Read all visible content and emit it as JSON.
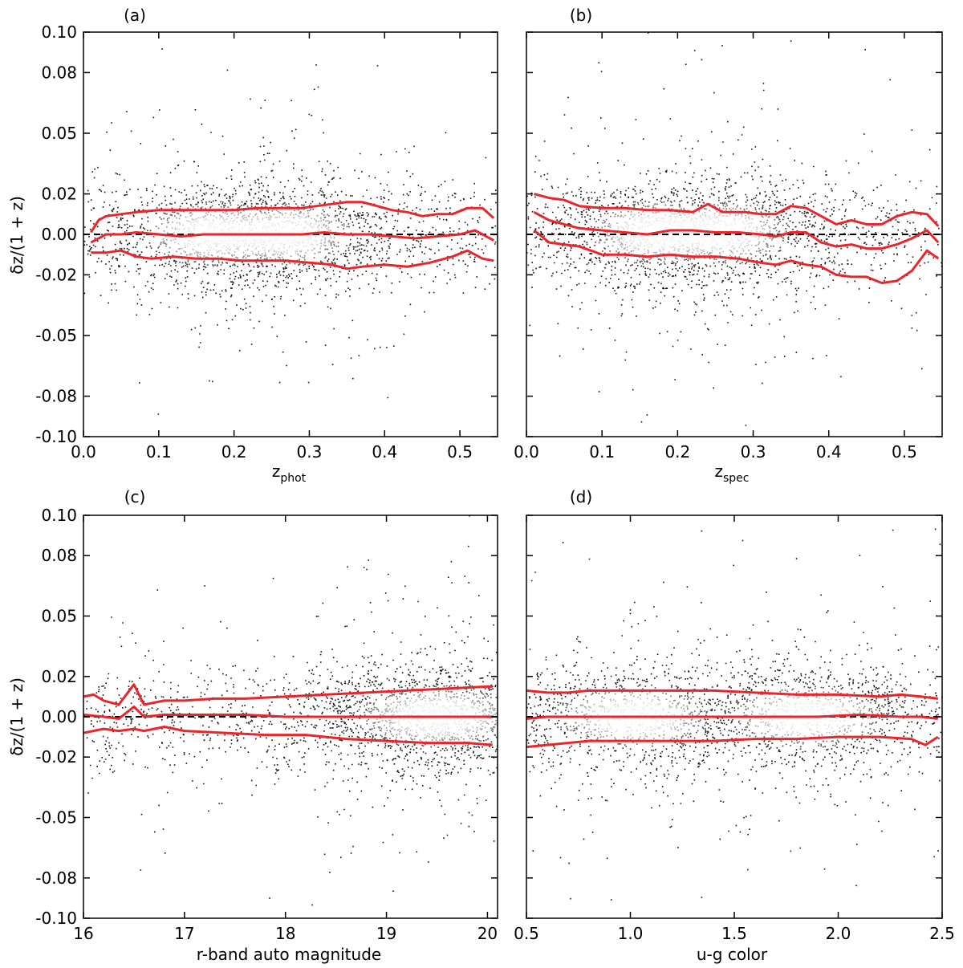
{
  "figure": {
    "y_label": "δz/(1 + z)",
    "dashed_line_color": "#000000",
    "median_line_color": "#e8262b",
    "point_color": "#111111",
    "density_core_color": "#ffffff"
  },
  "chart_data": [
    {
      "type": "scatter",
      "panel_label": "(a)",
      "xlabel_main": "z",
      "xlabel_sub": "phot",
      "ylabel": "δz/(1 + z)",
      "xlim": [
        0.0,
        0.55
      ],
      "ylim": [
        -0.1,
        0.1
      ],
      "x_ticks": [
        0.0,
        0.1,
        0.2,
        0.3,
        0.4,
        0.5
      ],
      "x_tick_labels": [
        "0.0",
        "0.1",
        "0.2",
        "0.3",
        "0.4",
        "0.5"
      ],
      "y_tick_labels": [
        "-0.10",
        "-0.08",
        "-0.05",
        "-0.02",
        "0.00",
        "0.02",
        "0.05",
        "0.08",
        "0.10"
      ],
      "reference_line": 0.0,
      "density": {
        "centers": [
          [
            0.17,
            0.0
          ],
          [
            0.27,
            0.0
          ]
        ],
        "x_sigma": 0.06,
        "y_sigma": 0.011
      },
      "series": [
        {
          "x": [
            0.01,
            0.02,
            0.03,
            0.05,
            0.07,
            0.1,
            0.13,
            0.16,
            0.2,
            0.23,
            0.26,
            0.29,
            0.31,
            0.33,
            0.35,
            0.37,
            0.39,
            0.41,
            0.43,
            0.45,
            0.47,
            0.49,
            0.51,
            0.53,
            0.545
          ],
          "y": [
            0.001,
            0.007,
            0.009,
            0.01,
            0.011,
            0.012,
            0.012,
            0.012,
            0.012,
            0.013,
            0.013,
            0.013,
            0.014,
            0.015,
            0.016,
            0.016,
            0.014,
            0.012,
            0.011,
            0.009,
            0.01,
            0.01,
            0.013,
            0.013,
            0.008
          ]
        },
        {
          "x": [
            0.01,
            0.03,
            0.05,
            0.07,
            0.1,
            0.13,
            0.16,
            0.2,
            0.23,
            0.26,
            0.29,
            0.32,
            0.35,
            0.38,
            0.41,
            0.44,
            0.47,
            0.5,
            0.52,
            0.545
          ],
          "y": [
            -0.004,
            0.0,
            0.0,
            0.001,
            0.0,
            -0.001,
            0.0,
            0.0,
            0.0,
            0.0,
            0.0,
            0.001,
            0.0,
            0.0,
            -0.001,
            -0.002,
            -0.001,
            0.0,
            0.002,
            -0.003
          ]
        },
        {
          "x": [
            0.01,
            0.03,
            0.05,
            0.07,
            0.09,
            0.12,
            0.15,
            0.18,
            0.21,
            0.24,
            0.27,
            0.3,
            0.33,
            0.35,
            0.37,
            0.4,
            0.43,
            0.46,
            0.49,
            0.51,
            0.53,
            0.545
          ],
          "y": [
            -0.009,
            -0.009,
            -0.008,
            -0.011,
            -0.012,
            -0.011,
            -0.012,
            -0.012,
            -0.013,
            -0.013,
            -0.013,
            -0.014,
            -0.015,
            -0.017,
            -0.016,
            -0.015,
            -0.016,
            -0.014,
            -0.011,
            -0.008,
            -0.012,
            -0.013
          ]
        }
      ]
    },
    {
      "type": "scatter",
      "panel_label": "(b)",
      "xlabel_main": "z",
      "xlabel_sub": "spec",
      "ylabel": "",
      "xlim": [
        0.0,
        0.55
      ],
      "ylim": [
        -0.1,
        0.1
      ],
      "x_ticks": [
        0.0,
        0.1,
        0.2,
        0.3,
        0.4,
        0.5
      ],
      "x_tick_labels": [
        "0.0",
        "0.1",
        "0.2",
        "0.3",
        "0.4",
        "0.5"
      ],
      "y_tick_labels": [],
      "reference_line": 0.0,
      "density": {
        "centers": [
          [
            0.17,
            0.001
          ],
          [
            0.26,
            0.001
          ]
        ],
        "x_sigma": 0.06,
        "y_sigma": 0.011
      },
      "series": [
        {
          "x": [
            0.01,
            0.03,
            0.05,
            0.07,
            0.1,
            0.13,
            0.16,
            0.19,
            0.22,
            0.24,
            0.26,
            0.29,
            0.31,
            0.33,
            0.35,
            0.37,
            0.39,
            0.41,
            0.43,
            0.45,
            0.47,
            0.49,
            0.51,
            0.53,
            0.545
          ],
          "y": [
            0.02,
            0.018,
            0.017,
            0.014,
            0.013,
            0.013,
            0.012,
            0.012,
            0.011,
            0.015,
            0.011,
            0.011,
            0.01,
            0.01,
            0.014,
            0.013,
            0.009,
            0.005,
            0.007,
            0.005,
            0.005,
            0.009,
            0.011,
            0.01,
            0.004
          ]
        },
        {
          "x": [
            0.01,
            0.03,
            0.05,
            0.07,
            0.1,
            0.13,
            0.16,
            0.19,
            0.22,
            0.25,
            0.28,
            0.31,
            0.33,
            0.35,
            0.37,
            0.39,
            0.41,
            0.43,
            0.45,
            0.47,
            0.49,
            0.51,
            0.53,
            0.545
          ],
          "y": [
            0.011,
            0.007,
            0.005,
            0.003,
            0.002,
            0.001,
            0.0,
            0.002,
            0.002,
            0.001,
            0.001,
            0.0,
            -0.001,
            0.001,
            0.001,
            -0.004,
            -0.006,
            -0.005,
            -0.007,
            -0.007,
            -0.005,
            -0.002,
            0.002,
            -0.004
          ]
        },
        {
          "x": [
            0.01,
            0.03,
            0.05,
            0.07,
            0.1,
            0.13,
            0.16,
            0.19,
            0.22,
            0.25,
            0.28,
            0.31,
            0.33,
            0.35,
            0.37,
            0.39,
            0.41,
            0.43,
            0.45,
            0.47,
            0.49,
            0.51,
            0.53,
            0.545
          ],
          "y": [
            0.002,
            -0.004,
            -0.005,
            -0.006,
            -0.01,
            -0.01,
            -0.011,
            -0.01,
            -0.011,
            -0.011,
            -0.012,
            -0.014,
            -0.015,
            -0.013,
            -0.015,
            -0.016,
            -0.02,
            -0.021,
            -0.021,
            -0.024,
            -0.023,
            -0.018,
            -0.008,
            -0.012
          ]
        }
      ]
    },
    {
      "type": "scatter",
      "panel_label": "(c)",
      "xlabel_main": "r-band auto magnitude",
      "xlabel_sub": "",
      "ylabel": "δz/(1 + z)",
      "xlim": [
        16.0,
        20.1
      ],
      "ylim": [
        -0.1,
        0.1
      ],
      "x_ticks": [
        16,
        17,
        18,
        19,
        20
      ],
      "x_tick_labels": [
        "16",
        "17",
        "18",
        "19",
        "20"
      ],
      "y_tick_labels": [
        "-0.10",
        "-0.08",
        "-0.05",
        "-0.02",
        "0.00",
        "0.02",
        "0.05",
        "0.08",
        "0.10"
      ],
      "reference_line": 0.0,
      "density": {
        "centers": [
          [
            19.5,
            0.0
          ]
        ],
        "x_sigma": 0.55,
        "y_sigma": 0.011
      },
      "series": [
        {
          "x": [
            16.0,
            16.1,
            16.2,
            16.35,
            16.5,
            16.6,
            16.8,
            17.0,
            17.3,
            17.6,
            18.0,
            18.4,
            18.8,
            19.2,
            19.6,
            20.0,
            20.05
          ],
          "y": [
            0.01,
            0.011,
            0.008,
            0.006,
            0.016,
            0.006,
            0.008,
            0.008,
            0.009,
            0.009,
            0.01,
            0.011,
            0.012,
            0.013,
            0.014,
            0.015,
            0.015
          ]
        },
        {
          "x": [
            16.0,
            16.2,
            16.35,
            16.5,
            16.6,
            16.8,
            17.2,
            17.6,
            18.0,
            18.4,
            18.8,
            19.2,
            19.6,
            20.05
          ],
          "y": [
            0.001,
            0.0,
            -0.001,
            0.005,
            0.0,
            0.001,
            0.001,
            0.001,
            0.0,
            0.0,
            0.0,
            0.0,
            0.0,
            0.0
          ]
        },
        {
          "x": [
            16.0,
            16.1,
            16.2,
            16.35,
            16.5,
            16.6,
            16.8,
            17.0,
            17.4,
            17.8,
            18.2,
            18.6,
            19.0,
            19.4,
            19.8,
            20.05
          ],
          "y": [
            -0.008,
            -0.007,
            -0.006,
            -0.007,
            -0.006,
            -0.007,
            -0.005,
            -0.007,
            -0.008,
            -0.009,
            -0.009,
            -0.011,
            -0.012,
            -0.013,
            -0.013,
            -0.014
          ]
        }
      ]
    },
    {
      "type": "scatter",
      "panel_label": "(d)",
      "xlabel_main": "u-g color",
      "xlabel_sub": "",
      "ylabel": "",
      "xlim": [
        0.5,
        2.5
      ],
      "ylim": [
        -0.1,
        0.1
      ],
      "x_ticks": [
        0.5,
        1.0,
        1.5,
        2.0,
        2.5
      ],
      "x_tick_labels": [
        "0.5",
        "1.0",
        "1.5",
        "2.0",
        "2.5"
      ],
      "y_tick_labels": [],
      "reference_line": 0.0,
      "density": {
        "centers": [
          [
            1.02,
            0.0
          ],
          [
            1.85,
            0.0
          ]
        ],
        "x_sigma": 0.25,
        "y_sigma": 0.011
      },
      "series": [
        {
          "x": [
            0.5,
            0.6,
            0.7,
            0.8,
            1.0,
            1.2,
            1.4,
            1.6,
            1.8,
            2.0,
            2.2,
            2.3,
            2.4,
            2.48
          ],
          "y": [
            0.013,
            0.012,
            0.012,
            0.013,
            0.013,
            0.013,
            0.013,
            0.012,
            0.011,
            0.011,
            0.01,
            0.011,
            0.01,
            0.009
          ]
        },
        {
          "x": [
            0.5,
            0.6,
            0.7,
            0.9,
            1.1,
            1.3,
            1.5,
            1.7,
            1.9,
            2.1,
            2.3,
            2.4,
            2.48
          ],
          "y": [
            -0.001,
            0.0,
            0.0,
            0.0,
            0.0,
            0.0,
            0.0,
            0.0,
            0.0,
            0.001,
            0.0,
            0.0,
            -0.001
          ]
        },
        {
          "x": [
            0.5,
            0.6,
            0.7,
            0.8,
            1.0,
            1.2,
            1.4,
            1.6,
            1.8,
            2.0,
            2.2,
            2.35,
            2.42,
            2.48
          ],
          "y": [
            -0.015,
            -0.014,
            -0.013,
            -0.012,
            -0.012,
            -0.012,
            -0.012,
            -0.011,
            -0.011,
            -0.01,
            -0.01,
            -0.011,
            -0.014,
            -0.01
          ]
        }
      ]
    }
  ]
}
